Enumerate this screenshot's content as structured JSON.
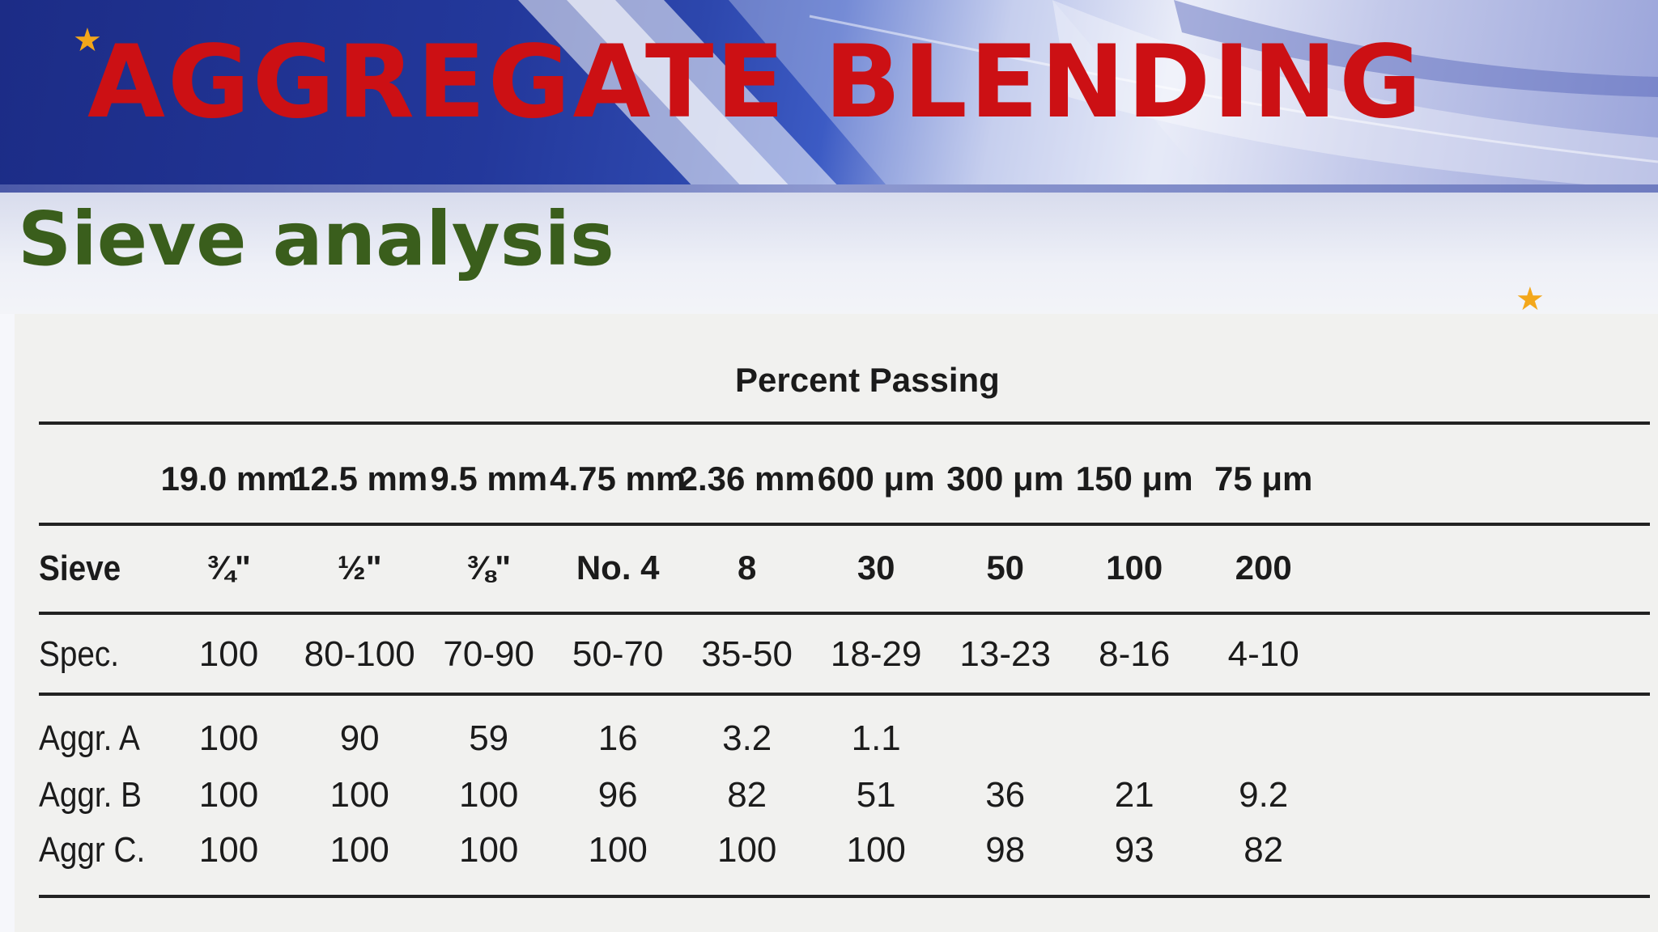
{
  "slide": {
    "title": "AGGREGATE BLENDING",
    "subtitle": "Sieve analysis",
    "colors": {
      "title": "#cc1014",
      "subtitle": "#3a5e1c",
      "star": "#f3a71b",
      "banner": "#23389b"
    }
  },
  "table": {
    "caption": "Percent Passing",
    "sizes": [
      "19.0 mm",
      "12.5 mm",
      "9.5 mm",
      "4.75 mm",
      "2.36 mm",
      "600 μm",
      "300 μm",
      "150 μm",
      "75 μm"
    ],
    "sieve_label": "Sieve",
    "sieves": [
      "¾\"",
      "½\"",
      "⅜\"",
      "No. 4",
      "8",
      "30",
      "50",
      "100",
      "200"
    ],
    "rows": [
      {
        "label": "Spec.",
        "values": [
          "100",
          "80-100",
          "70-90",
          "50-70",
          "35-50",
          "18-29",
          "13-23",
          "8-16",
          "4-10"
        ]
      },
      {
        "label": "Aggr. A",
        "values": [
          "100",
          "90",
          "59",
          "16",
          "3.2",
          "1.1",
          "",
          "",
          ""
        ]
      },
      {
        "label": "Aggr. B",
        "values": [
          "100",
          "100",
          "100",
          "96",
          "82",
          "51",
          "36",
          "21",
          "9.2"
        ]
      },
      {
        "label": "Aggr C.",
        "values": [
          "100",
          "100",
          "100",
          "100",
          "100",
          "100",
          "98",
          "93",
          "82"
        ]
      }
    ]
  }
}
